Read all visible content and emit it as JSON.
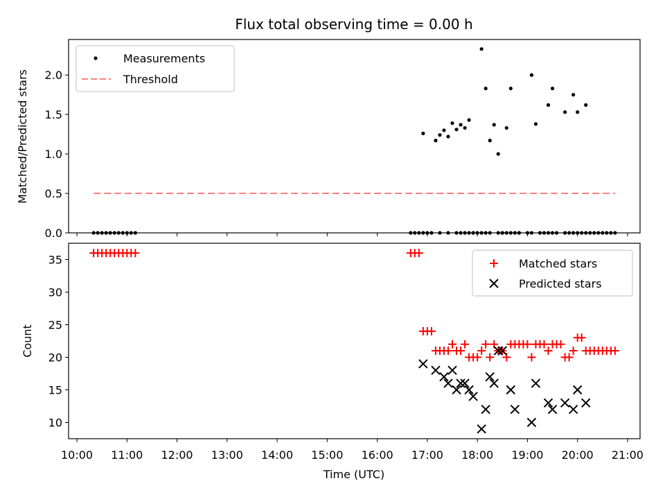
{
  "chart_data": [
    {
      "type": "scatter",
      "panel": "top",
      "title": "Flux total observing time = 0.00 h",
      "xlabel": "",
      "ylabel": "Matched/Predicted stars",
      "ylim": [
        0,
        2.45
      ],
      "yticks": [
        0.0,
        0.5,
        1.0,
        1.5,
        2.0
      ],
      "ytick_labels": [
        "0.0",
        "0.5",
        "1.0",
        "1.5",
        "2.0"
      ],
      "legend": {
        "placement": "top-left",
        "entries": [
          "Measurements",
          "Threshold"
        ]
      },
      "colors": {
        "measurements": "#000000",
        "threshold": "#ff7f7f"
      },
      "threshold": {
        "value": 0.5,
        "x_start": "10:20",
        "x_end": "20:45"
      },
      "series": [
        {
          "name": "Measurements",
          "x": [
            "10:20",
            "10:25",
            "10:30",
            "10:35",
            "10:40",
            "10:45",
            "10:50",
            "10:55",
            "11:00",
            "11:05",
            "11:10",
            "16:40",
            "16:45",
            "16:50",
            "16:55",
            "17:00",
            "17:05",
            "17:15",
            "17:25",
            "17:35",
            "17:40",
            "17:45",
            "17:50",
            "17:55",
            "18:00",
            "18:05",
            "18:10",
            "18:15",
            "18:25",
            "18:30",
            "18:35",
            "18:40",
            "18:45",
            "18:50",
            "19:00",
            "19:05",
            "19:15",
            "19:20",
            "19:25",
            "19:30",
            "19:35",
            "19:45",
            "19:50",
            "19:55",
            "20:00",
            "20:05",
            "20:10",
            "20:15",
            "20:20",
            "20:25",
            "20:30",
            "20:35",
            "20:40",
            "20:45",
            "16:55",
            "17:10",
            "17:15",
            "17:20",
            "17:25",
            "17:30",
            "17:35",
            "17:40",
            "17:45",
            "17:50",
            "17:55",
            "18:05",
            "18:10",
            "18:15",
            "18:20",
            "18:25",
            "18:30",
            "18:35",
            "18:40",
            "18:50",
            "19:05",
            "19:10",
            "19:25",
            "19:30",
            "19:45",
            "19:55",
            "20:00",
            "20:10"
          ],
          "y": [
            0,
            0,
            0,
            0,
            0,
            0,
            0,
            0,
            0,
            0,
            0,
            0,
            0,
            0,
            0,
            0,
            0,
            0,
            0,
            0,
            0,
            0,
            0,
            0,
            0,
            0,
            0,
            0,
            0,
            0,
            0,
            0,
            0,
            0,
            0,
            0,
            0,
            0,
            0,
            0,
            0,
            0,
            0,
            0,
            0,
            0,
            0,
            0,
            0,
            0,
            0,
            0,
            0,
            0,
            1.26,
            1.17,
            1.24,
            1.3,
            1.22,
            1.39,
            1.31,
            1.37,
            1.33,
            1.43,
            0,
            2.33,
            1.83,
            1.17,
            1.37,
            1.0,
            0,
            1.33,
            1.83,
            0,
            2.0,
            1.38,
            1.62,
            1.83,
            1.53,
            1.75,
            1.53,
            1.62
          ]
        }
      ]
    },
    {
      "type": "scatter",
      "panel": "bottom",
      "title": "",
      "xlabel": "Time (UTC)",
      "ylabel": "Count",
      "ylim": [
        7.5,
        37.5
      ],
      "yticks": [
        10,
        15,
        20,
        25,
        30,
        35
      ],
      "ytick_labels": [
        "10",
        "15",
        "20",
        "25",
        "30",
        "35"
      ],
      "xlim": [
        "09:50",
        "21:15"
      ],
      "xticks": [
        "10:00",
        "11:00",
        "12:00",
        "13:00",
        "14:00",
        "15:00",
        "16:00",
        "17:00",
        "18:00",
        "19:00",
        "20:00",
        "21:00"
      ],
      "legend": {
        "placement": "top-right",
        "entries": [
          "Matched stars",
          "Predicted stars"
        ]
      },
      "colors": {
        "matched": "#ff0000",
        "predicted": "#000000"
      },
      "series": [
        {
          "name": "Matched stars",
          "x": [
            "10:20",
            "10:25",
            "10:30",
            "10:35",
            "10:40",
            "10:45",
            "10:50",
            "10:55",
            "11:00",
            "11:05",
            "11:10",
            "16:40",
            "16:45",
            "16:50",
            "16:55",
            "17:00",
            "17:05",
            "17:10",
            "17:15",
            "17:20",
            "17:25",
            "17:30",
            "17:35",
            "17:40",
            "17:45",
            "17:50",
            "17:55",
            "18:00",
            "18:05",
            "18:10",
            "18:15",
            "18:20",
            "18:25",
            "18:30",
            "18:35",
            "18:40",
            "18:45",
            "18:50",
            "18:55",
            "19:00",
            "19:05",
            "19:10",
            "19:15",
            "19:20",
            "19:25",
            "19:30",
            "19:35",
            "19:40",
            "19:45",
            "19:50",
            "19:55",
            "20:00",
            "20:05",
            "20:10",
            "20:15",
            "20:20",
            "20:25",
            "20:30",
            "20:35",
            "20:40",
            "20:45"
          ],
          "y": [
            36,
            36,
            36,
            36,
            36,
            36,
            36,
            36,
            36,
            36,
            36,
            36,
            36,
            36,
            24,
            24,
            24,
            21,
            21,
            21,
            21,
            22,
            21,
            21,
            22,
            20,
            20,
            20,
            21,
            22,
            20,
            22,
            21,
            21,
            20,
            22,
            22,
            22,
            22,
            22,
            20,
            22,
            22,
            22,
            21,
            22,
            22,
            22,
            20,
            20,
            21,
            23,
            23,
            21,
            21,
            21,
            21,
            21,
            21,
            21,
            21
          ]
        },
        {
          "name": "Predicted stars",
          "x": [
            "16:55",
            "17:10",
            "17:20",
            "17:25",
            "17:30",
            "17:35",
            "17:40",
            "17:45",
            "17:50",
            "17:55",
            "18:05",
            "18:10",
            "18:15",
            "18:20",
            "18:25",
            "18:30",
            "18:40",
            "18:45",
            "19:05",
            "19:10",
            "19:25",
            "19:30",
            "19:45",
            "19:55",
            "20:00",
            "20:10"
          ],
          "y": [
            19,
            18,
            17,
            16,
            18,
            15,
            16,
            16,
            15,
            14,
            9,
            12,
            17,
            16,
            21,
            21,
            15,
            12,
            10,
            16,
            13,
            12,
            13,
            12,
            15,
            13
          ]
        }
      ]
    }
  ]
}
